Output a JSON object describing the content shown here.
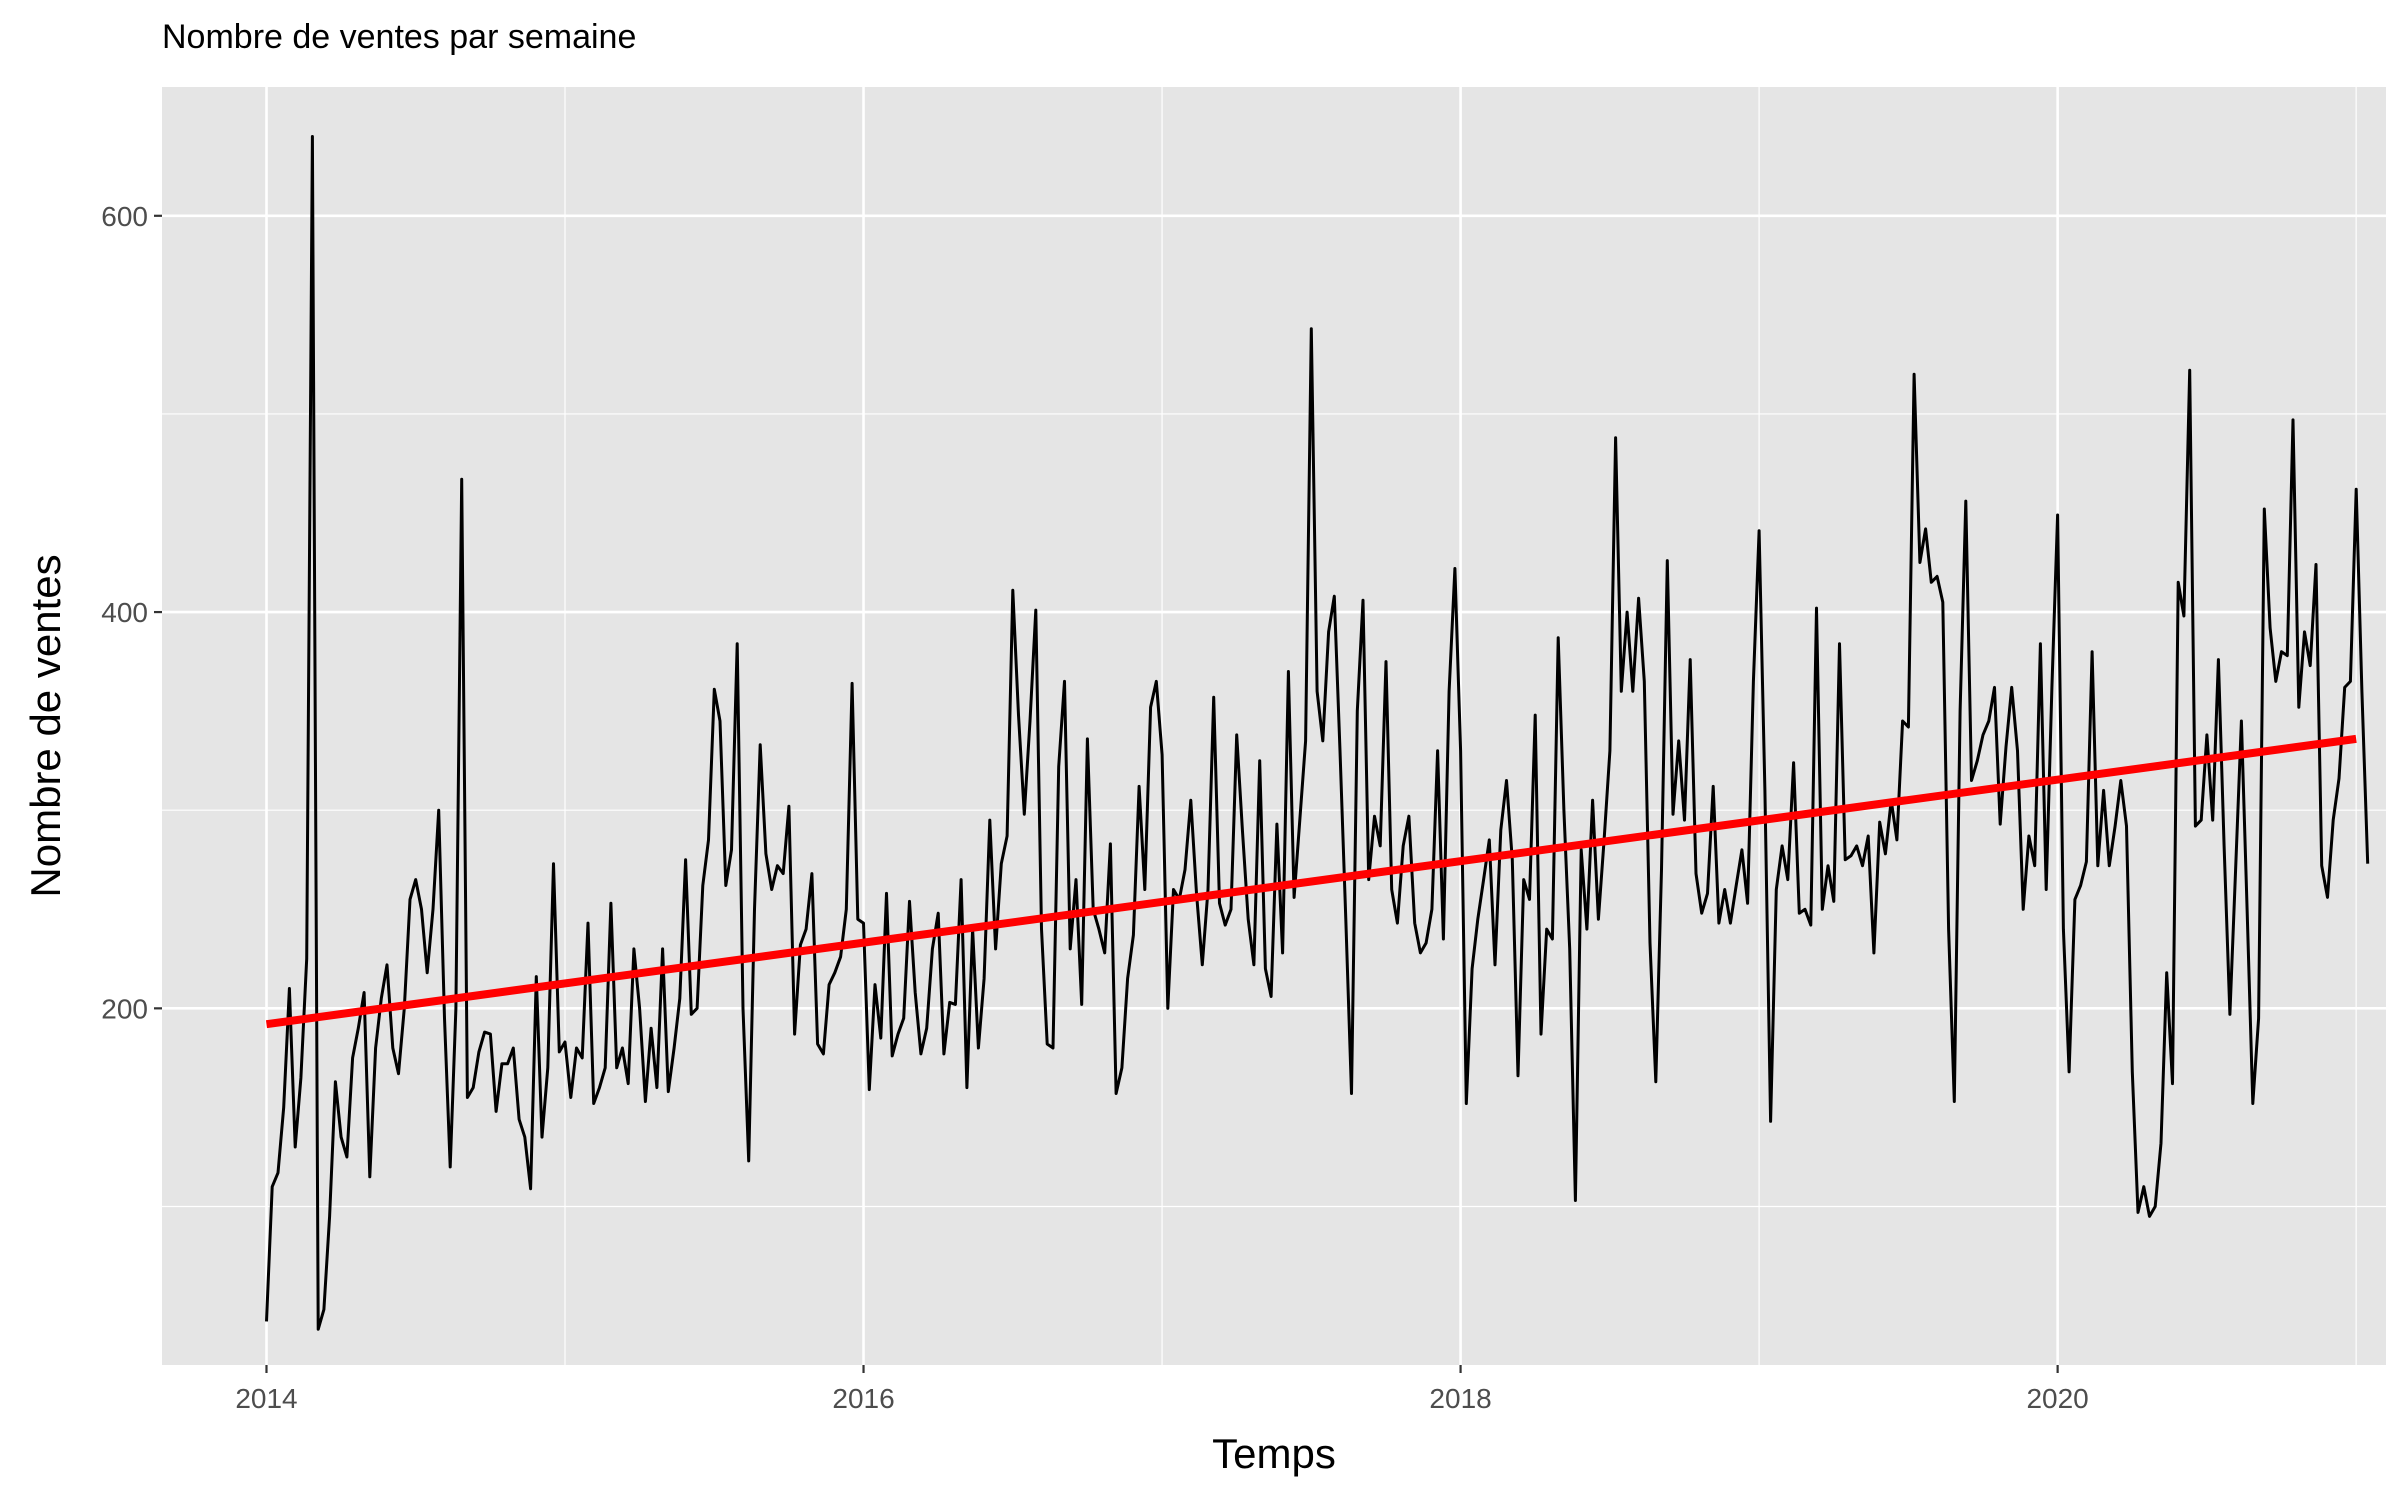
{
  "chart_data": {
    "type": "line",
    "title": "Nombre de ventes par semaine",
    "xlabel": "Temps",
    "ylabel": "Nombre de ventes",
    "xlim": [
      2013.65,
      2021.1
    ],
    "ylim": [
      20,
      665
    ],
    "x_ticks": [
      2014,
      2016,
      2018,
      2020
    ],
    "y_ticks": [
      200,
      400,
      600
    ],
    "grid": true,
    "legend": "none",
    "colors": {
      "panel": "#e5e5e5",
      "grid": "#ffffff",
      "series": "#000000",
      "trend": "#ff0000",
      "tick_text": "#4d4d4d",
      "tick_mark": "#333333"
    },
    "series": [
      {
        "x_start": 2014.0,
        "x_step": 0.019231,
        "values": [
          42,
          110,
          117,
          150,
          210,
          130,
          165,
          225,
          640,
          38,
          48,
          95,
          163,
          135,
          125,
          175,
          190,
          208,
          115,
          180,
          205,
          222,
          180,
          167,
          200,
          255,
          265,
          250,
          218,
          250,
          300,
          195,
          120,
          200,
          467,
          155,
          160,
          178,
          188,
          187,
          148,
          172,
          172,
          180,
          144,
          135,
          109,
          216,
          135,
          170,
          273,
          178,
          183,
          155,
          180,
          175,
          243,
          152,
          160,
          170,
          253,
          170,
          180,
          162,
          230,
          200,
          153,
          190,
          160,
          230,
          158,
          180,
          205,
          275,
          197,
          200,
          262,
          285,
          361,
          345,
          262,
          280,
          384,
          200,
          123,
          250,
          333,
          278,
          260,
          272,
          268,
          302,
          187,
          232,
          240,
          268,
          182,
          177,
          212,
          218,
          226,
          250,
          364,
          245,
          243,
          159,
          212,
          185,
          258,
          176,
          187,
          195,
          254,
          208,
          177,
          190,
          230,
          248,
          177,
          203,
          202,
          265,
          160,
          240,
          180,
          215,
          295,
          230,
          273,
          287,
          411,
          348,
          298,
          345,
          401,
          240,
          182,
          180,
          322,
          365,
          230,
          265,
          202,
          336,
          250,
          240,
          228,
          283,
          157,
          170,
          215,
          237,
          312,
          260,
          352,
          365,
          328,
          200,
          260,
          255,
          270,
          305,
          258,
          222,
          260,
          357,
          253,
          242,
          250,
          338,
          290,
          245,
          222,
          325,
          220,
          206,
          293,
          228,
          370,
          256,
          295,
          335,
          543,
          360,
          335,
          390,
          408,
          330,
          245,
          157,
          350,
          406,
          265,
          297,
          282,
          375,
          260,
          243,
          282,
          297,
          243,
          228,
          233,
          250,
          330,
          235,
          360,
          422,
          330,
          152,
          220,
          245,
          265,
          285,
          222,
          290,
          315,
          275,
          166,
          265,
          255,
          348,
          187,
          240,
          235,
          387,
          300,
          230,
          103,
          280,
          240,
          305,
          245,
          285,
          330,
          488,
          360,
          400,
          360,
          407,
          365,
          233,
          163,
          270,
          426,
          298,
          335,
          295,
          376,
          268,
          248,
          258,
          312,
          243,
          260,
          243,
          262,
          280,
          253,
          365,
          441,
          310,
          143,
          260,
          282,
          265,
          324,
          248,
          250,
          242,
          402,
          250,
          272,
          254,
          384,
          275,
          277,
          282,
          272,
          287,
          228,
          294,
          278,
          305,
          285,
          345,
          342,
          520,
          425,
          442,
          415,
          418,
          405,
          240,
          153,
          350,
          456,
          315,
          325,
          338,
          345,
          362,
          293,
          332,
          362,
          330,
          250,
          287,
          272,
          384,
          260,
          362,
          449,
          240,
          168,
          255,
          262,
          274,
          380,
          272,
          310,
          272,
          292,
          315,
          292,
          168,
          97,
          110,
          95,
          100,
          132,
          218,
          162,
          415,
          398,
          522,
          292,
          295,
          338,
          295,
          376,
          282,
          197,
          270,
          345,
          250,
          152,
          195,
          452,
          392,
          365,
          380,
          378,
          497,
          352,
          390,
          373,
          424,
          272,
          256,
          295,
          316,
          362,
          365,
          462,
          360,
          273
        ]
      }
    ],
    "trend": {
      "x": [
        2014.0,
        2021.0
      ],
      "y": [
        192,
        336
      ]
    }
  }
}
